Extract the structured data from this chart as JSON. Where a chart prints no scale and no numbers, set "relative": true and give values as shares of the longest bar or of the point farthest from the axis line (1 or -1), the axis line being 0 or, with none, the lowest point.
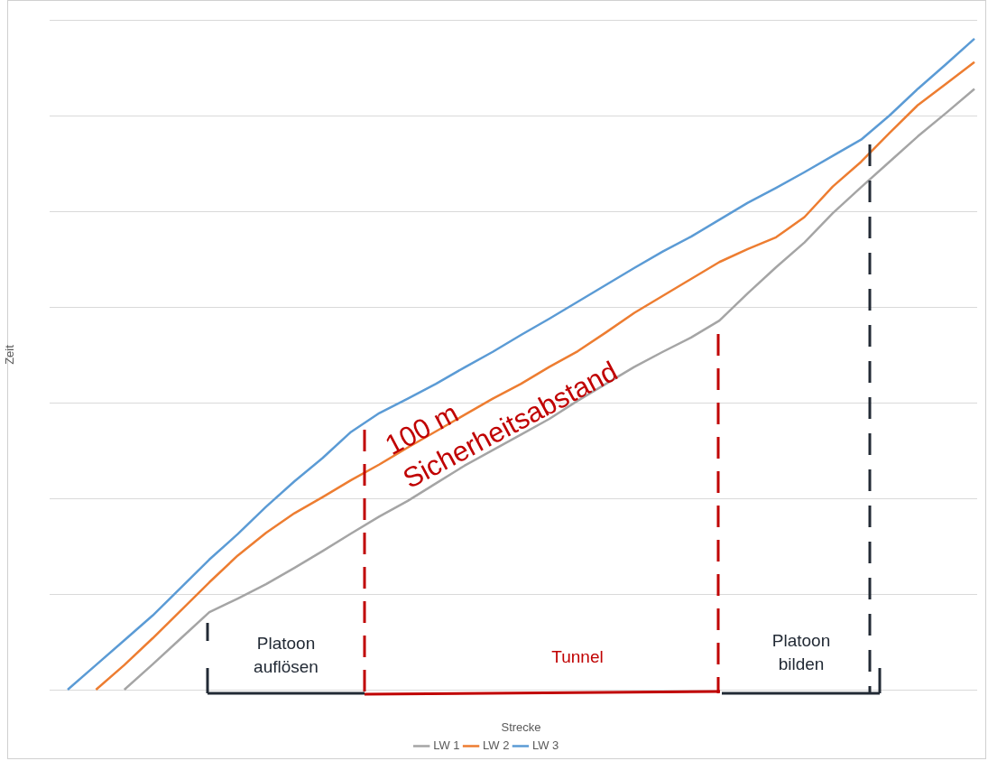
{
  "chart_data": {
    "type": "line",
    "relative": true,
    "xlabel": "Strecke",
    "ylabel": "Zeit",
    "grid": "y",
    "legend": "bottom",
    "marker": "none",
    "categories": [
      null,
      null,
      null,
      null,
      null,
      null,
      null,
      null,
      null,
      null,
      null,
      null,
      null,
      null,
      null,
      null,
      null,
      null,
      null,
      null,
      null,
      null,
      null,
      null,
      null,
      null,
      null,
      null,
      null,
      null,
      null,
      null,
      null
    ],
    "series": [
      {
        "name": "LW 1",
        "color": "#a5a5a5",
        "values": [
          null,
          null,
          0,
          0.039,
          0.079,
          0.119,
          0.14,
          0.162,
          0.187,
          0.213,
          0.24,
          0.266,
          0.29,
          0.317,
          0.344,
          0.368,
          0.392,
          0.416,
          0.444,
          0.47,
          0.496,
          0.519,
          0.541,
          0.567,
          0.609,
          0.649,
          0.687,
          0.732,
          0.772,
          0.811,
          0.85,
          0.886,
          0.923
        ]
      },
      {
        "name": "LW 2",
        "color": "#ed7d31",
        "values": [
          null,
          0,
          0.038,
          0.079,
          0.122,
          0.165,
          0.206,
          0.241,
          0.271,
          0.296,
          0.322,
          0.346,
          0.372,
          0.397,
          0.422,
          0.447,
          0.47,
          0.496,
          0.52,
          0.549,
          0.579,
          0.605,
          0.631,
          0.657,
          0.677,
          0.695,
          0.726,
          0.773,
          0.811,
          0.855,
          0.898,
          0.931,
          0.964
        ]
      },
      {
        "name": "LW 3",
        "color": "#5b9bd5",
        "values": [
          0,
          0.038,
          0.076,
          0.114,
          0.157,
          0.2,
          0.239,
          0.281,
          0.32,
          0.356,
          0.396,
          0.425,
          0.447,
          0.47,
          0.495,
          0.519,
          0.545,
          0.57,
          0.596,
          0.622,
          0.648,
          0.673,
          0.696,
          0.722,
          0.748,
          0.771,
          0.795,
          0.82,
          0.845,
          0.882,
          0.923,
          0.961,
          1
        ]
      }
    ],
    "annotations": [
      "100 m Sicherheitsabstand",
      "Platoon auflösen",
      "Tunnel",
      "Platoon bilden"
    ]
  }
}
